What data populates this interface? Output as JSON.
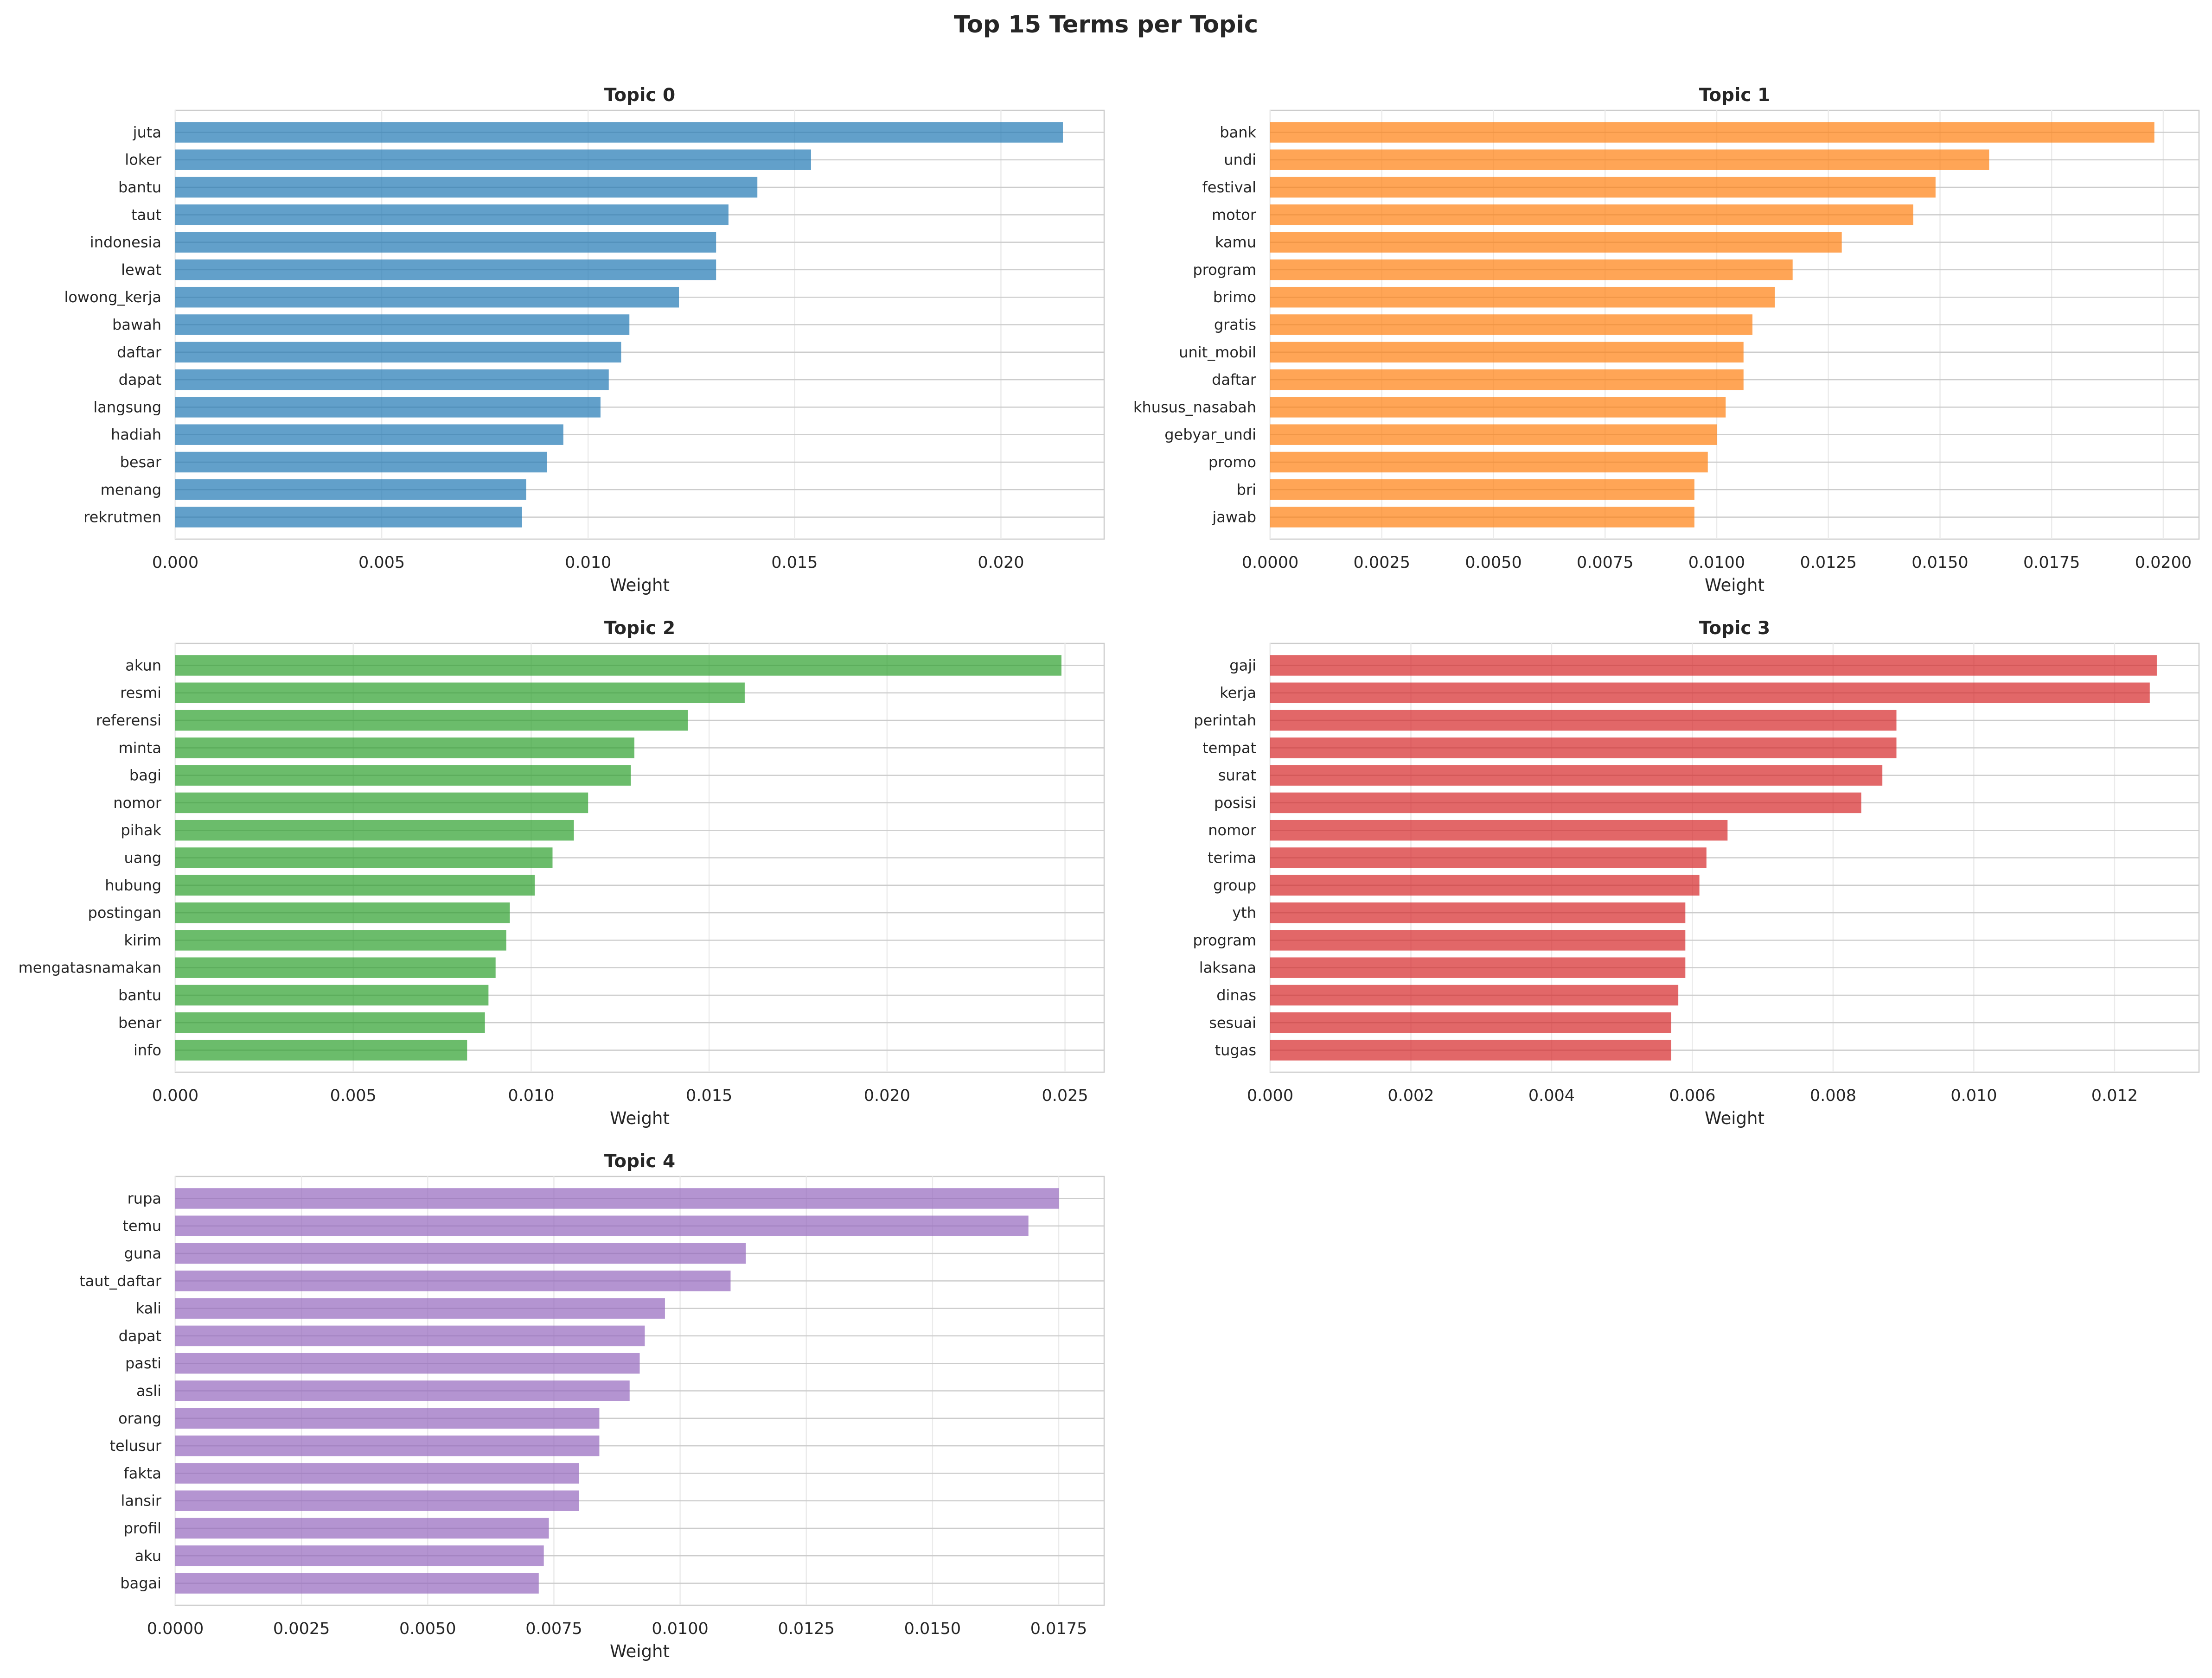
{
  "chart_data": {
    "type": "bar",
    "orientation": "horizontal",
    "title": "Top 15 Terms per Topic",
    "grid": true,
    "panels": [
      {
        "title": "Topic 0",
        "color": "#1f77b4",
        "xlabel": "Weight",
        "xlim": [
          0,
          0.0225
        ],
        "xticks": [
          0.0,
          0.005,
          0.01,
          0.015,
          0.02
        ],
        "xtick_labels": [
          "0.000",
          "0.005",
          "0.010",
          "0.015",
          "0.020"
        ],
        "terms": [
          "juta",
          "loker",
          "bantu",
          "taut",
          "indonesia",
          "lewat",
          "lowong_kerja",
          "bawah",
          "daftar",
          "dapat",
          "langsung",
          "hadiah",
          "besar",
          "menang",
          "rekrutmen"
        ],
        "values": [
          0.0215,
          0.0154,
          0.0141,
          0.0134,
          0.0131,
          0.0131,
          0.0122,
          0.011,
          0.0108,
          0.0105,
          0.0103,
          0.0094,
          0.009,
          0.0085,
          0.0084
        ]
      },
      {
        "title": "Topic 1",
        "color": "#ff7f0e",
        "xlabel": "Weight",
        "xlim": [
          0,
          0.0208
        ],
        "xticks": [
          0.0,
          0.0025,
          0.005,
          0.0075,
          0.01,
          0.0125,
          0.015,
          0.0175,
          0.02
        ],
        "xtick_labels": [
          "0.0000",
          "0.0025",
          "0.0050",
          "0.0075",
          "0.0100",
          "0.0125",
          "0.0150",
          "0.0175",
          "0.0200"
        ],
        "terms": [
          "bank",
          "undi",
          "festival",
          "motor",
          "kamu",
          "program",
          "brimo",
          "gratis",
          "unit_mobil",
          "daftar",
          "khusus_nasabah",
          "gebyar_undi",
          "promo",
          "bri",
          "jawab"
        ],
        "values": [
          0.0198,
          0.0161,
          0.0149,
          0.0144,
          0.0128,
          0.0117,
          0.0113,
          0.0108,
          0.0106,
          0.0106,
          0.0102,
          0.01,
          0.0098,
          0.0095,
          0.0095
        ]
      },
      {
        "title": "Topic 2",
        "color": "#2ca02c",
        "xlabel": "Weight",
        "xlim": [
          0,
          0.0261
        ],
        "xticks": [
          0.0,
          0.005,
          0.01,
          0.015,
          0.02,
          0.025
        ],
        "xtick_labels": [
          "0.000",
          "0.005",
          "0.010",
          "0.015",
          "0.020",
          "0.025"
        ],
        "terms": [
          "akun",
          "resmi",
          "referensi",
          "minta",
          "bagi",
          "nomor",
          "pihak",
          "uang",
          "hubung",
          "postingan",
          "kirim",
          "mengatasnamakan",
          "bantu",
          "benar",
          "info"
        ],
        "values": [
          0.0249,
          0.016,
          0.0144,
          0.0129,
          0.0128,
          0.0116,
          0.0112,
          0.0106,
          0.0101,
          0.0094,
          0.0093,
          0.009,
          0.0088,
          0.0087,
          0.0082
        ]
      },
      {
        "title": "Topic 3",
        "color": "#d62728",
        "xlabel": "Weight",
        "xlim": [
          0,
          0.0132
        ],
        "xticks": [
          0.0,
          0.002,
          0.004,
          0.006,
          0.008,
          0.01,
          0.012
        ],
        "xtick_labels": [
          "0.000",
          "0.002",
          "0.004",
          "0.006",
          "0.008",
          "0.010",
          "0.012"
        ],
        "terms": [
          "gaji",
          "kerja",
          "perintah",
          "tempat",
          "surat",
          "posisi",
          "nomor",
          "terima",
          "group",
          "yth",
          "program",
          "laksana",
          "dinas",
          "sesuai",
          "tugas"
        ],
        "values": [
          0.0126,
          0.0125,
          0.0089,
          0.0089,
          0.0087,
          0.0084,
          0.0065,
          0.0062,
          0.0061,
          0.0059,
          0.0059,
          0.0059,
          0.0058,
          0.0057,
          0.0057
        ]
      },
      {
        "title": "Topic 4",
        "color": "#9467bd",
        "xlabel": "Weight",
        "xlim": [
          0,
          0.0184
        ],
        "xticks": [
          0.0,
          0.0025,
          0.005,
          0.0075,
          0.01,
          0.0125,
          0.015,
          0.0175
        ],
        "xtick_labels": [
          "0.0000",
          "0.0025",
          "0.0050",
          "0.0075",
          "0.0100",
          "0.0125",
          "0.0150",
          "0.0175"
        ],
        "terms": [
          "rupa",
          "temu",
          "guna",
          "taut_daftar",
          "kali",
          "dapat",
          "pasti",
          "asli",
          "orang",
          "telusur",
          "fakta",
          "lansir",
          "profil",
          "aku",
          "bagai"
        ],
        "values": [
          0.0175,
          0.0169,
          0.0113,
          0.011,
          0.0097,
          0.0093,
          0.0092,
          0.009,
          0.0084,
          0.0084,
          0.008,
          0.008,
          0.0074,
          0.0073,
          0.0072
        ]
      }
    ]
  }
}
